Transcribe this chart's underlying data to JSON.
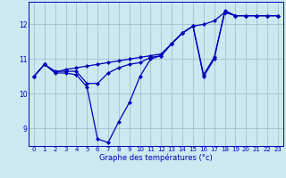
{
  "xlabel": "Graphe des températures (°c)",
  "background_color": "#cce8f0",
  "line_color": "#0000bb",
  "hours": [
    0,
    1,
    2,
    3,
    4,
    5,
    6,
    7,
    8,
    9,
    10,
    11,
    12,
    13,
    14,
    15,
    16,
    17,
    18,
    19,
    20,
    21,
    22,
    23
  ],
  "s1": [
    10.5,
    10.85,
    10.6,
    10.6,
    10.55,
    10.2,
    8.7,
    8.6,
    9.2,
    9.75,
    10.5,
    11.0,
    11.1,
    11.45,
    11.75,
    11.95,
    10.5,
    11.0,
    12.4,
    12.25,
    12.25,
    12.25,
    12.25,
    12.25
  ],
  "s2": [
    10.5,
    10.85,
    10.65,
    10.65,
    10.65,
    10.3,
    10.3,
    10.6,
    10.75,
    10.85,
    10.9,
    11.05,
    11.1,
    11.45,
    11.75,
    11.95,
    10.55,
    11.05,
    12.35,
    12.25,
    12.25,
    12.25,
    12.25,
    12.25
  ],
  "s3": [
    10.5,
    10.85,
    10.62,
    10.7,
    10.75,
    10.8,
    10.85,
    10.9,
    10.95,
    11.0,
    11.05,
    11.1,
    11.15,
    11.45,
    11.75,
    11.95,
    12.0,
    12.1,
    12.35,
    12.25,
    12.25,
    12.25,
    12.25,
    12.25
  ],
  "ylim": [
    8.5,
    12.65
  ],
  "yticks": [
    9,
    10,
    11,
    12
  ],
  "xlim": [
    -0.5,
    23.5
  ],
  "grid_color": "#99bbcc",
  "markersize": 2.2,
  "linewidth": 0.9,
  "tick_fontsize": 5.0,
  "label_fontsize": 6.0
}
